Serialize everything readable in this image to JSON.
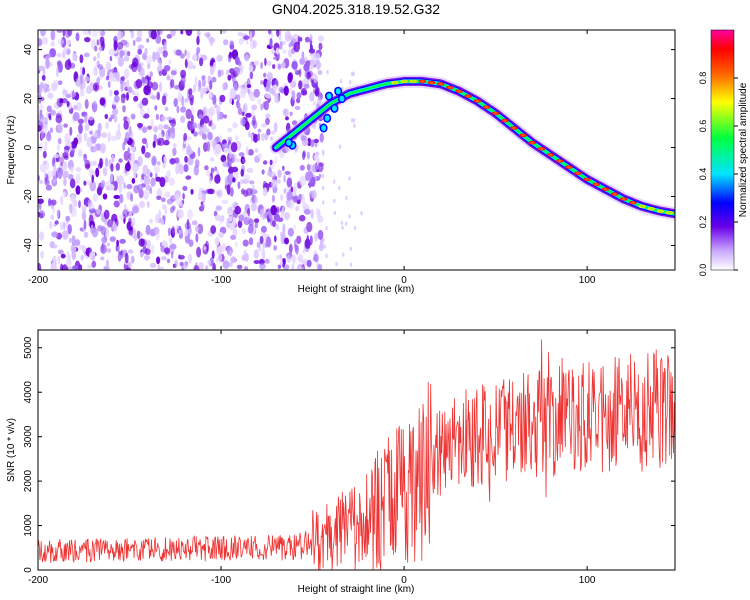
{
  "figure": {
    "title": "GN04.2025.318.19.52.G32"
  },
  "chart_data": [
    {
      "type": "heatmap",
      "xlabel": "Height of straight line (km)",
      "ylabel": "Frequency (Hz)",
      "xlim": [
        -200,
        148
      ],
      "ylim": [
        -50,
        48
      ],
      "x_ticks": [
        "-200",
        "-100",
        "0",
        "100"
      ],
      "y_ticks": [
        "40",
        "20",
        "0",
        "-20",
        "-40"
      ],
      "grid": false,
      "noise_region_x": [
        -200,
        -45
      ],
      "trace": {
        "x": [
          -70,
          -60,
          -50,
          -40,
          -30,
          -20,
          -10,
          0,
          10,
          20,
          30,
          40,
          50,
          60,
          70,
          80,
          90,
          100,
          110,
          120,
          130,
          140,
          148
        ],
        "y": [
          0,
          6,
          12,
          18,
          22,
          24,
          26,
          27,
          27,
          26,
          23,
          19,
          14,
          8,
          2,
          -3,
          -8,
          -13,
          -17,
          -21,
          -24,
          -26,
          -27
        ]
      },
      "colorbar": {
        "label": "Normalized spectral amplitude",
        "range": [
          0,
          1
        ],
        "ticks": [
          "0.0",
          "0.2",
          "0.4",
          "0.6",
          "0.8"
        ]
      },
      "colors": {
        "noise": "#7a1fe0",
        "colormap": [
          "#ffffff",
          "#c9a8ff",
          "#6a00e8",
          "#0000ff",
          "#00e5ff",
          "#00ff40",
          "#ffff00",
          "#ff6000",
          "#ff0000",
          "#ff00a0"
        ]
      }
    },
    {
      "type": "line",
      "xlabel": "Height of straight line (km)",
      "ylabel": "SNR (10 * v/v)",
      "xlim": [
        -200,
        148
      ],
      "ylim": [
        0,
        5400
      ],
      "x_ticks": [
        "-200",
        "-100",
        "0",
        "100"
      ],
      "y_ticks": [
        "0",
        "1000",
        "2000",
        "3000",
        "4000",
        "5000"
      ],
      "grid": false,
      "series": [
        {
          "color": "#ee3333",
          "x": [
            -200,
            -150,
            -100,
            -60,
            -45,
            -35,
            -25,
            -15,
            -5,
            0,
            10,
            20,
            30,
            40,
            50,
            60,
            70,
            80,
            85,
            90,
            100,
            120,
            148
          ],
          "y": [
            420,
            460,
            480,
            500,
            650,
            800,
            1000,
            1300,
            1600,
            1750,
            2150,
            2650,
            2900,
            3000,
            3100,
            3200,
            3300,
            3350,
            3400,
            3300,
            3400,
            3500,
            3650
          ]
        }
      ]
    }
  ]
}
